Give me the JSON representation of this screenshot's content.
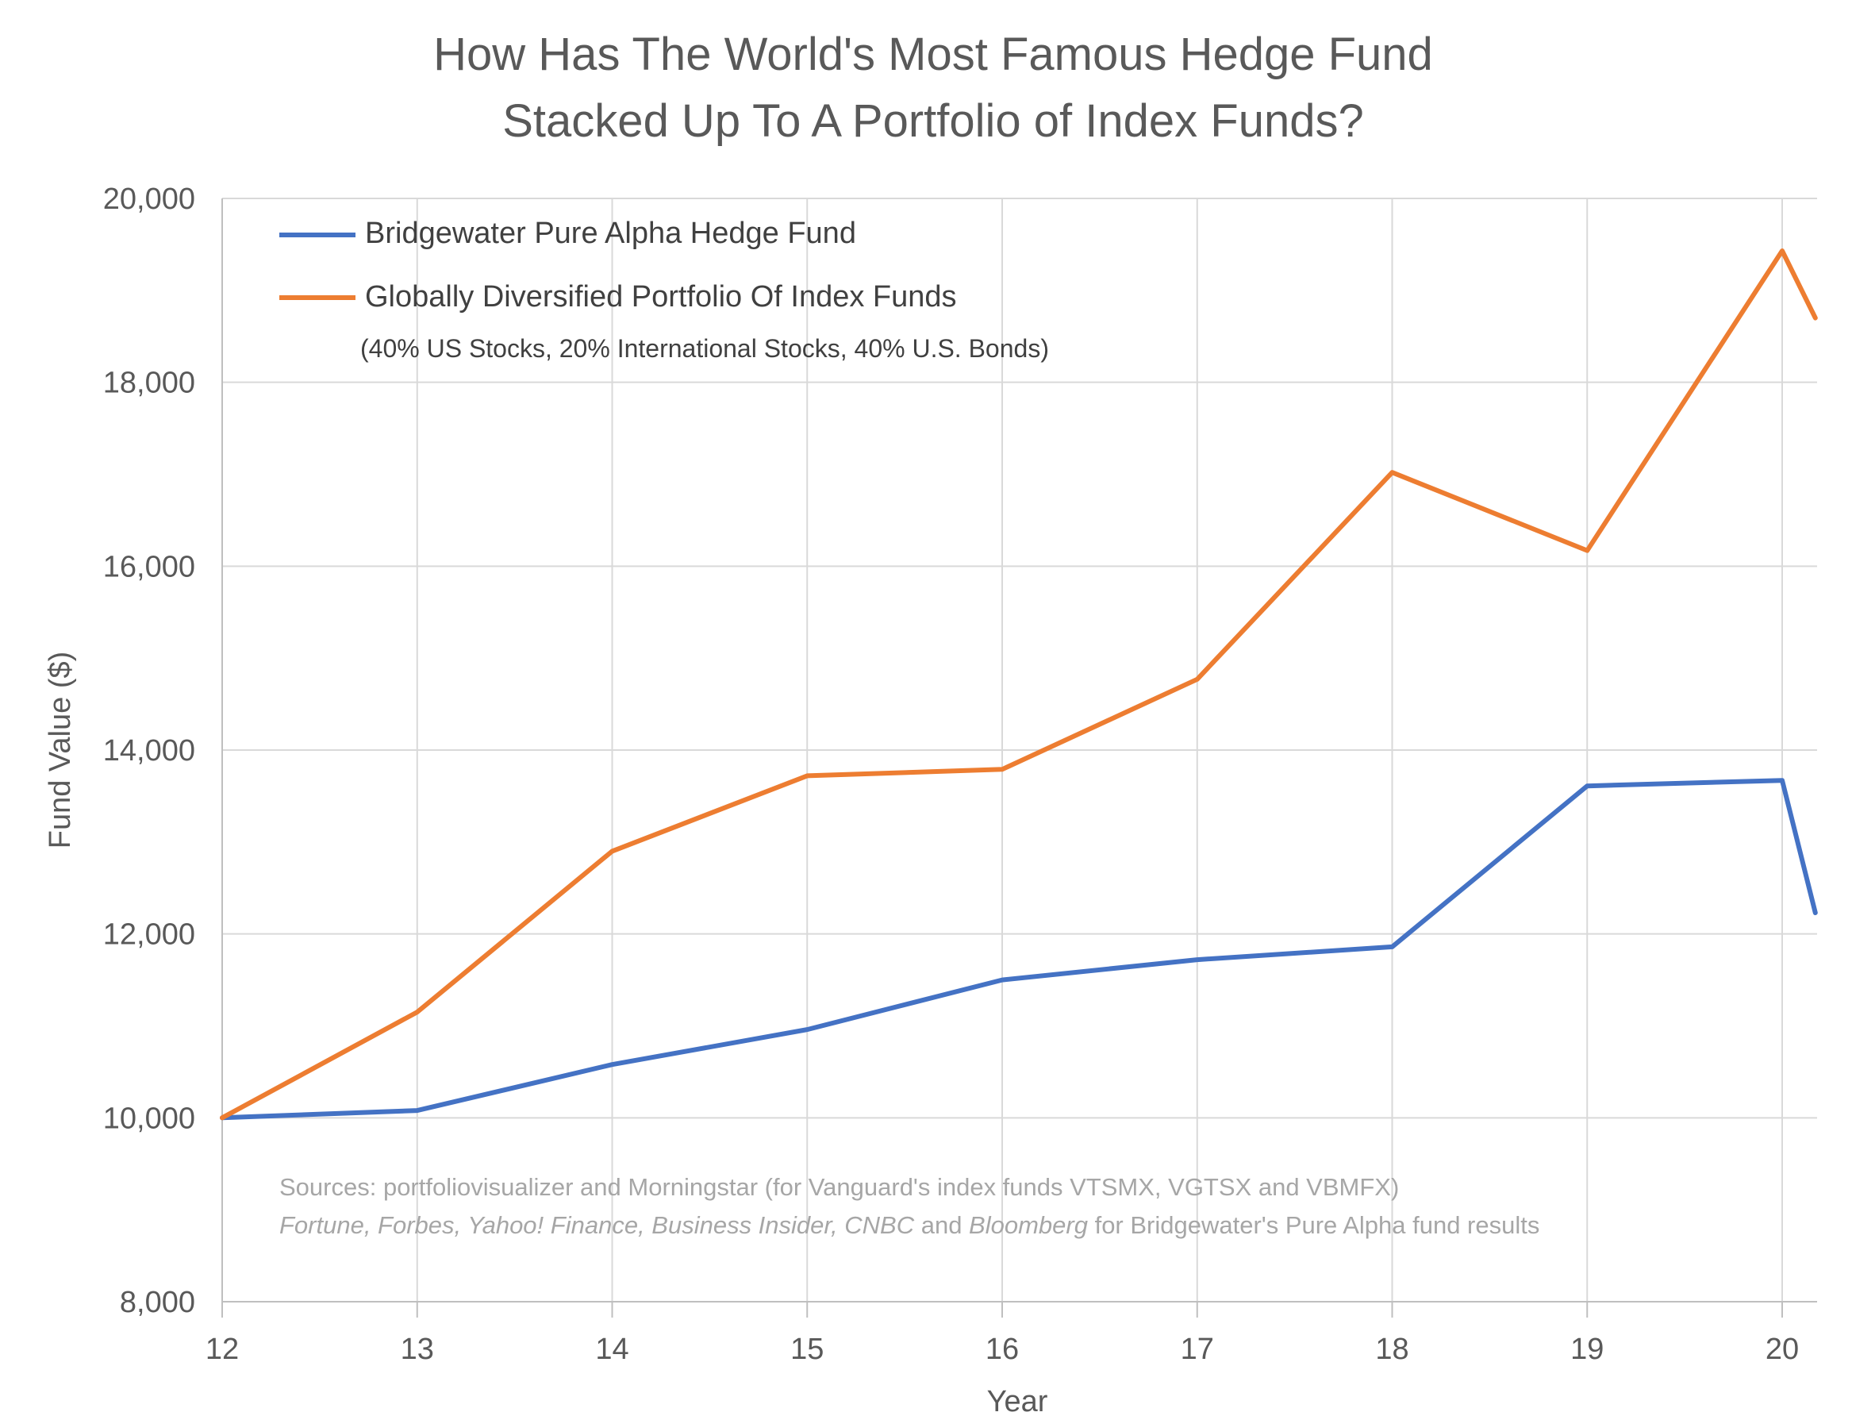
{
  "chart_data": {
    "type": "line",
    "title": [
      "How Has The World's Most Famous Hedge Fund",
      "Stacked Up To A Portfolio of Index Funds?"
    ],
    "xlabel": "Year",
    "ylabel": "Fund Value ($)",
    "ylim": [
      8000,
      20000
    ],
    "xlim": [
      12,
      20.17
    ],
    "grid": true,
    "legend_position": "top-left",
    "x": [
      12,
      13,
      14,
      15,
      16,
      17,
      18,
      19,
      20,
      20.17
    ],
    "x_tick_labels": [
      "12",
      "13",
      "14",
      "15",
      "16",
      "17",
      "18",
      "19",
      "20"
    ],
    "y_ticks": [
      8000,
      10000,
      12000,
      14000,
      16000,
      18000,
      20000
    ],
    "y_tick_labels": [
      "8,000",
      "10,000",
      "12,000",
      "14,000",
      "16,000",
      "18,000",
      "20,000"
    ],
    "series": [
      {
        "name": "Bridgewater Pure Alpha Hedge Fund",
        "color": "#4472c4",
        "values": [
          10000,
          10080,
          10580,
          10960,
          11500,
          11720,
          11860,
          13610,
          13670,
          12230
        ]
      },
      {
        "name": "Globally Diversified Portfolio Of Index Funds",
        "color": "#ed7d31",
        "values": [
          10000,
          11150,
          12900,
          13720,
          13790,
          14770,
          17020,
          16170,
          19430,
          18700
        ]
      }
    ],
    "legend_note": "(40% US Stocks, 20% International Stocks, 40% U.S. Bonds)",
    "sources": {
      "line1": "Sources: portfoliovisualizer and Morningstar (for Vanguard's index funds VTSMX, VGTSX and VBMFX)",
      "line2_italic": "Fortune, Forbes, Yahoo! Finance, Business Insider, CNBC",
      "line2_and": " and ",
      "line2_italic2": "Bloomberg",
      "line2_rest": " for Bridgewater's Pure Alpha fund results"
    }
  }
}
